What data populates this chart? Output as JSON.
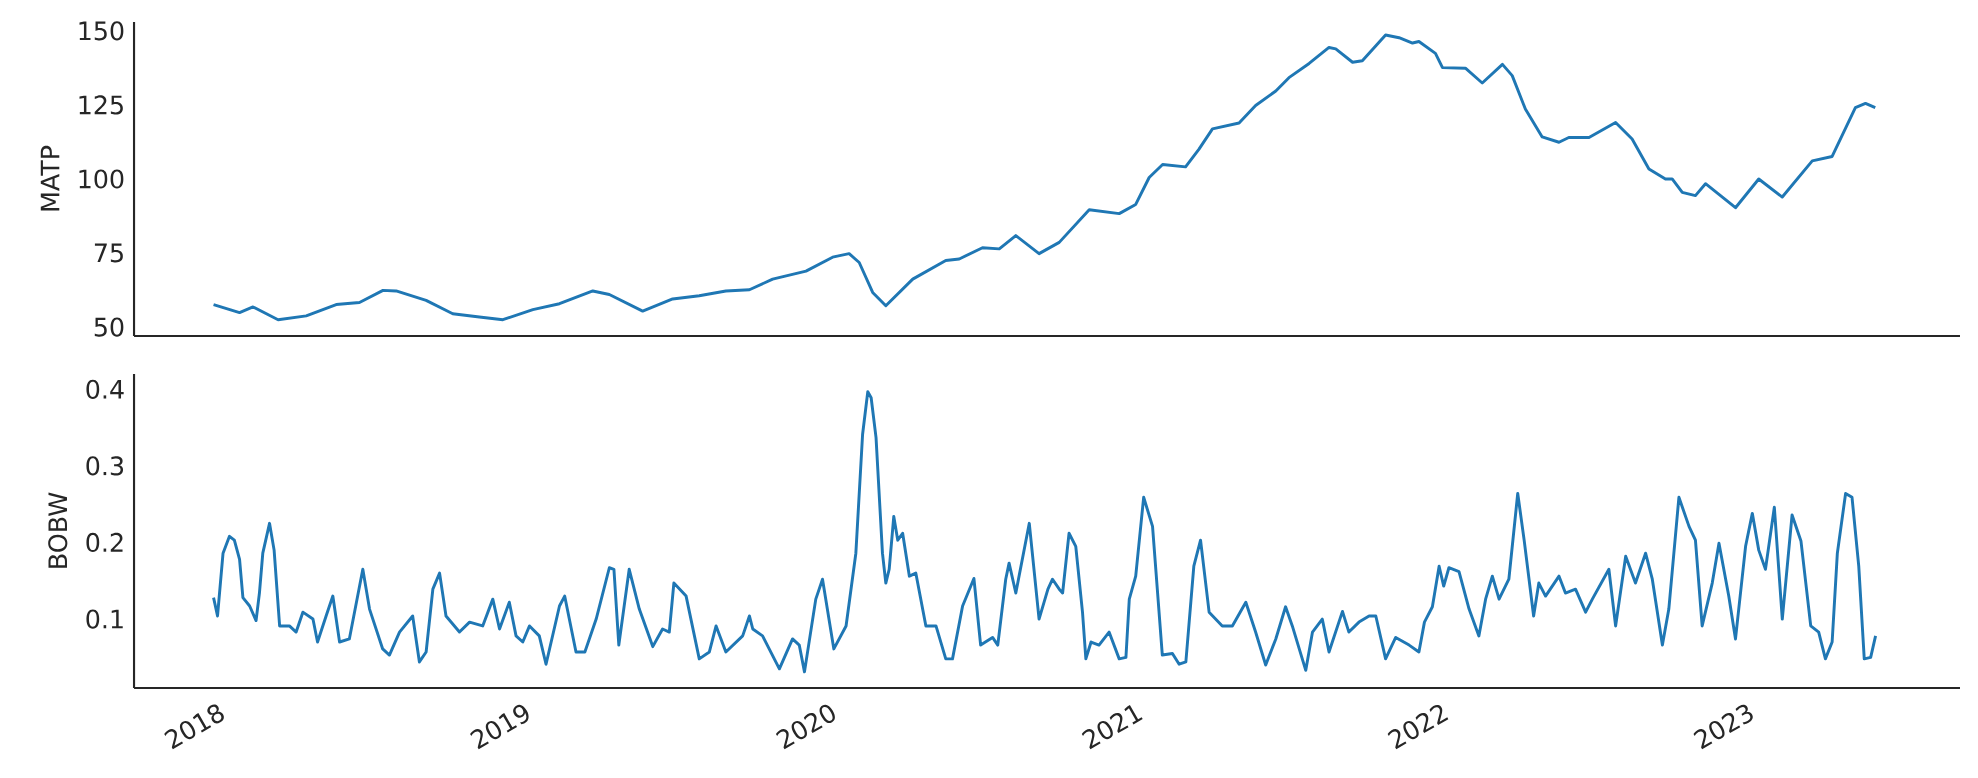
{
  "chart_data": [
    {
      "type": "line",
      "ylabel": "MATP",
      "color": "#1f77b4",
      "xlim": [
        2017.74,
        2023.71
      ],
      "xticks": [
        2018,
        2019,
        2020,
        2021,
        2022,
        2023
      ],
      "ylim": [
        47,
        153
      ],
      "yticks": [
        50,
        75,
        100,
        125,
        150
      ],
      "tick_labels": "y",
      "x": [
        2018.0,
        2018.085,
        2018.129,
        2018.211,
        2018.303,
        2018.401,
        2018.477,
        2018.554,
        2018.597,
        2018.695,
        2018.782,
        2018.869,
        2018.946,
        2019.044,
        2019.131,
        2019.24,
        2019.294,
        2019.403,
        2019.501,
        2019.588,
        2019.675,
        2019.752,
        2019.828,
        2019.937,
        2020.024,
        2020.078,
        2020.111,
        2020.155,
        2020.198,
        2020.286,
        2020.394,
        2020.438,
        2020.514,
        2020.569,
        2020.623,
        2020.699,
        2020.765,
        2020.863,
        2020.961,
        2021.015,
        2021.059,
        2021.103,
        2021.178,
        2021.222,
        2021.266,
        2021.353,
        2021.407,
        2021.473,
        2021.516,
        2021.582,
        2021.647,
        2021.669,
        2021.724,
        2021.756,
        2021.832,
        2021.876,
        2021.92,
        2021.941,
        2021.995,
        2022.018,
        2022.093,
        2022.148,
        2022.214,
        2022.246,
        2022.289,
        2022.344,
        2022.399,
        2022.431,
        2022.497,
        2022.584,
        2022.638,
        2022.693,
        2022.747,
        2022.769,
        2022.802,
        2022.845,
        2022.878,
        2022.976,
        2023.052,
        2023.129,
        2023.227,
        2023.292,
        2023.368,
        2023.401,
        2023.433
      ],
      "values": [
        57.6,
        54.9,
        56.8,
        52.5,
        53.8,
        57.6,
        58.3,
        62.4,
        62.2,
        59.0,
        54.5,
        53.4,
        52.5,
        55.9,
        57.9,
        62.2,
        61.0,
        55.4,
        59.5,
        60.6,
        62.2,
        62.6,
        66.2,
        68.9,
        73.6,
        74.8,
        71.8,
        61.7,
        57.2,
        66.2,
        72.5,
        73.0,
        76.8,
        76.4,
        80.9,
        74.8,
        78.6,
        89.6,
        88.3,
        91.4,
        100.5,
        104.9,
        104.1,
        110.1,
        116.9,
        118.9,
        124.8,
        129.7,
        134.2,
        139.0,
        144.4,
        143.9,
        139.4,
        139.9,
        148.6,
        147.7,
        145.9,
        146.4,
        142.4,
        137.6,
        137.4,
        132.4,
        138.7,
        134.9,
        123.6,
        114.2,
        112.4,
        114.0,
        114.0,
        119.1,
        113.5,
        103.4,
        100.0,
        100.0,
        95.5,
        94.4,
        98.4,
        90.3,
        100.0,
        93.9,
        106.1,
        107.6,
        124.1,
        125.5,
        124.1
      ]
    },
    {
      "type": "line",
      "ylabel": "BOBW",
      "color": "#1f77b4",
      "xlim": [
        2017.74,
        2023.71
      ],
      "xticks": [
        2018,
        2019,
        2020,
        2021,
        2022,
        2023
      ],
      "ylim": [
        0.01,
        0.42
      ],
      "yticks": [
        0.1,
        0.2,
        0.3,
        0.4
      ],
      "x": [
        2018.0,
        2018.013,
        2018.031,
        2018.052,
        2018.068,
        2018.085,
        2018.096,
        2018.118,
        2018.139,
        2018.15,
        2018.161,
        2018.183,
        2018.198,
        2018.216,
        2018.248,
        2018.27,
        2018.292,
        2018.325,
        2018.34,
        2018.368,
        2018.39,
        2018.412,
        2018.444,
        2018.488,
        2018.51,
        2018.553,
        2018.575,
        2018.608,
        2018.651,
        2018.673,
        2018.695,
        2018.717,
        2018.739,
        2018.76,
        2018.804,
        2018.837,
        2018.88,
        2018.913,
        2018.935,
        2018.967,
        2018.989,
        2019.011,
        2019.033,
        2019.065,
        2019.087,
        2019.131,
        2019.148,
        2019.185,
        2019.214,
        2019.251,
        2019.294,
        2019.309,
        2019.325,
        2019.359,
        2019.392,
        2019.436,
        2019.468,
        2019.49,
        2019.505,
        2019.545,
        2019.588,
        2019.621,
        2019.643,
        2019.675,
        2019.73,
        2019.752,
        2019.763,
        2019.795,
        2019.85,
        2019.893,
        2019.915,
        2019.932,
        2019.969,
        2019.991,
        2020.028,
        2020.068,
        2020.1,
        2020.122,
        2020.139,
        2020.15,
        2020.166,
        2020.187,
        2020.198,
        2020.209,
        2020.224,
        2020.237,
        2020.253,
        2020.275,
        2020.296,
        2020.329,
        2020.362,
        2020.394,
        2020.416,
        2020.449,
        2020.486,
        2020.508,
        2020.547,
        2020.564,
        2020.59,
        2020.601,
        2020.623,
        2020.667,
        2020.699,
        2020.728,
        2020.743,
        2020.765,
        2020.776,
        2020.797,
        2020.819,
        2020.841,
        2020.852,
        2020.869,
        2020.895,
        2020.928,
        2020.961,
        2020.983,
        2020.994,
        2021.015,
        2021.041,
        2021.07,
        2021.102,
        2021.135,
        2021.157,
        2021.179,
        2021.205,
        2021.227,
        2021.255,
        2021.298,
        2021.331,
        2021.375,
        2021.407,
        2021.44,
        2021.473,
        2021.505,
        2021.527,
        2021.571,
        2021.593,
        2021.625,
        2021.647,
        2021.691,
        2021.712,
        2021.745,
        2021.778,
        2021.8,
        2021.832,
        2021.865,
        2021.909,
        2021.941,
        2021.959,
        2021.985,
        2022.007,
        2022.022,
        2022.039,
        2022.072,
        2022.105,
        2022.137,
        2022.159,
        2022.181,
        2022.203,
        2022.235,
        2022.264,
        2022.285,
        2022.316,
        2022.333,
        2022.355,
        2022.399,
        2022.42,
        2022.453,
        2022.486,
        2022.508,
        2022.562,
        2022.584,
        2022.617,
        2022.649,
        2022.682,
        2022.704,
        2022.737,
        2022.758,
        2022.791,
        2022.824,
        2022.845,
        2022.867,
        2022.9,
        2022.922,
        2022.954,
        2022.976,
        2023.009,
        2023.031,
        2023.052,
        2023.074,
        2023.103,
        2023.129,
        2023.161,
        2023.19,
        2023.222,
        2023.248,
        2023.27,
        2023.292,
        2023.309,
        2023.336,
        2023.357,
        2023.379,
        2023.397,
        2023.418,
        2023.434
      ],
      "values": [
        0.128,
        0.104,
        0.186,
        0.208,
        0.203,
        0.178,
        0.128,
        0.117,
        0.098,
        0.134,
        0.186,
        0.225,
        0.19,
        0.091,
        0.091,
        0.083,
        0.109,
        0.1,
        0.07,
        0.104,
        0.13,
        0.07,
        0.074,
        0.165,
        0.113,
        0.061,
        0.053,
        0.083,
        0.104,
        0.044,
        0.057,
        0.139,
        0.16,
        0.104,
        0.083,
        0.096,
        0.091,
        0.126,
        0.087,
        0.122,
        0.078,
        0.07,
        0.091,
        0.078,
        0.041,
        0.117,
        0.13,
        0.057,
        0.057,
        0.1,
        0.167,
        0.165,
        0.066,
        0.165,
        0.113,
        0.064,
        0.087,
        0.083,
        0.147,
        0.13,
        0.048,
        0.057,
        0.091,
        0.057,
        0.078,
        0.104,
        0.087,
        0.078,
        0.035,
        0.074,
        0.066,
        0.031,
        0.126,
        0.152,
        0.061,
        0.091,
        0.186,
        0.341,
        0.397,
        0.389,
        0.337,
        0.186,
        0.147,
        0.165,
        0.234,
        0.203,
        0.212,
        0.156,
        0.16,
        0.091,
        0.091,
        0.048,
        0.048,
        0.117,
        0.153,
        0.066,
        0.076,
        0.066,
        0.152,
        0.173,
        0.134,
        0.225,
        0.1,
        0.139,
        0.152,
        0.139,
        0.134,
        0.212,
        0.195,
        0.109,
        0.048,
        0.07,
        0.066,
        0.083,
        0.048,
        0.05,
        0.126,
        0.156,
        0.259,
        0.221,
        0.053,
        0.055,
        0.041,
        0.044,
        0.169,
        0.203,
        0.109,
        0.091,
        0.091,
        0.122,
        0.083,
        0.04,
        0.074,
        0.116,
        0.091,
        0.033,
        0.083,
        0.1,
        0.057,
        0.11,
        0.083,
        0.096,
        0.104,
        0.104,
        0.048,
        0.076,
        0.066,
        0.057,
        0.096,
        0.116,
        0.169,
        0.143,
        0.167,
        0.162,
        0.113,
        0.078,
        0.126,
        0.156,
        0.126,
        0.152,
        0.264,
        0.203,
        0.104,
        0.147,
        0.13,
        0.156,
        0.134,
        0.139,
        0.109,
        0.126,
        0.165,
        0.091,
        0.182,
        0.147,
        0.186,
        0.152,
        0.066,
        0.113,
        0.259,
        0.221,
        0.203,
        0.091,
        0.147,
        0.199,
        0.13,
        0.074,
        0.195,
        0.238,
        0.19,
        0.165,
        0.246,
        0.1,
        0.236,
        0.202,
        0.091,
        0.083,
        0.048,
        0.07,
        0.186,
        0.264,
        0.259,
        0.169,
        0.048,
        0.05,
        0.078
      ]
    }
  ]
}
